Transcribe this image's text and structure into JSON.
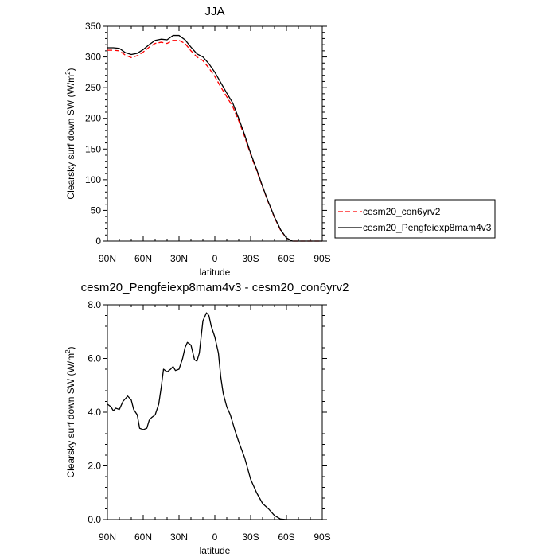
{
  "chart_data": [
    {
      "type": "line",
      "title": "JJA",
      "xlabel": "latitude",
      "ylabel": "Clearsky surf down SW (W/m",
      "ylabel_sup": "2",
      "ylabel_tail": ")",
      "xlim": [
        90,
        -90
      ],
      "ylim": [
        0,
        350
      ],
      "xticks": [
        90,
        60,
        30,
        0,
        -30,
        -60,
        -90
      ],
      "xtick_labels": [
        "90N",
        "60N",
        "30N",
        "0",
        "30S",
        "60S",
        "90S"
      ],
      "yticks": [
        0,
        50,
        100,
        150,
        200,
        250,
        300,
        350
      ],
      "ytick_labels": [
        "0",
        "50",
        "100",
        "150",
        "200",
        "250",
        "300",
        "350"
      ],
      "legend_position": "right",
      "series": [
        {
          "name": "cesm20_con6yrv2",
          "color": "#ff0000",
          "dash": "dashed",
          "x": [
            90,
            85,
            80,
            75,
            70,
            65,
            60,
            55,
            50,
            45,
            40,
            35,
            30,
            25,
            20,
            15,
            10,
            5,
            0,
            -5,
            -10,
            -15,
            -20,
            -25,
            -30,
            -35,
            -40,
            -45,
            -50,
            -55,
            -60,
            -65,
            -70,
            -75,
            -80,
            -85,
            -90
          ],
          "y": [
            311,
            311,
            310,
            303,
            299,
            302,
            308,
            316,
            322,
            324,
            322,
            327,
            327,
            322,
            310,
            300,
            294,
            282,
            268,
            251,
            235,
            219,
            196,
            170,
            141,
            115,
            88,
            62,
            38,
            18,
            5,
            0,
            0,
            0,
            0,
            0,
            0
          ]
        },
        {
          "name": "cesm20_Pengfeiexp8mam4v3",
          "color": "#000000",
          "dash": "solid",
          "x": [
            90,
            85,
            80,
            75,
            70,
            65,
            60,
            55,
            50,
            45,
            40,
            35,
            30,
            25,
            20,
            15,
            10,
            5,
            0,
            -5,
            -10,
            -15,
            -20,
            -25,
            -30,
            -35,
            -40,
            -45,
            -50,
            -55,
            -60,
            -65,
            -70,
            -75,
            -80,
            -85,
            -90
          ],
          "y": [
            315,
            315,
            314,
            307,
            304,
            306,
            312,
            320,
            327,
            329,
            328,
            335,
            335,
            328,
            316,
            305,
            300,
            289,
            275,
            258,
            241,
            225,
            200,
            173,
            143,
            117,
            89,
            63,
            39,
            19,
            5,
            0,
            0,
            0,
            0,
            0,
            0
          ]
        }
      ]
    },
    {
      "type": "line",
      "title": "cesm20_Pengfeiexp8mam4v3 - cesm20_con6yrv2",
      "xlabel": "latitude",
      "ylabel": "Clearsky surf down SW (W/m",
      "ylabel_sup": "2",
      "ylabel_tail": ")",
      "xlim": [
        90,
        -90
      ],
      "ylim": [
        0,
        8
      ],
      "xticks": [
        90,
        60,
        30,
        0,
        -30,
        -60,
        -90
      ],
      "xtick_labels": [
        "90N",
        "60N",
        "30N",
        "0",
        "30S",
        "60S",
        "90S"
      ],
      "yticks": [
        0,
        2,
        4,
        6,
        8
      ],
      "ytick_labels": [
        "0.0",
        "2.0",
        "4.0",
        "6.0",
        "8.0"
      ],
      "series": [
        {
          "color": "#000000",
          "dash": "solid",
          "x": [
            90,
            87,
            85,
            83,
            80,
            77,
            75,
            73,
            70,
            68,
            65,
            63,
            60,
            57,
            55,
            53,
            50,
            47,
            45,
            43,
            40,
            37,
            35,
            33,
            30,
            27,
            25,
            23,
            20,
            17,
            15,
            13,
            10,
            7,
            5,
            3,
            0,
            -3,
            -5,
            -7,
            -10,
            -13,
            -15,
            -17,
            -20,
            -25,
            -30,
            -35,
            -40,
            -45,
            -50,
            -55,
            -60,
            -65,
            -70,
            -75,
            -80,
            -85,
            -90
          ],
          "y": [
            4.3,
            4.2,
            4.05,
            4.15,
            4.1,
            4.4,
            4.5,
            4.6,
            4.45,
            4.1,
            3.9,
            3.4,
            3.35,
            3.4,
            3.7,
            3.8,
            3.9,
            4.3,
            4.9,
            5.6,
            5.5,
            5.6,
            5.7,
            5.55,
            5.6,
            6.0,
            6.4,
            6.6,
            6.5,
            5.95,
            5.9,
            6.2,
            7.4,
            7.7,
            7.6,
            7.2,
            6.8,
            6.2,
            5.3,
            4.7,
            4.2,
            3.9,
            3.6,
            3.3,
            2.9,
            2.3,
            1.5,
            1.0,
            0.6,
            0.4,
            0.15,
            0.02,
            0,
            0,
            0,
            0,
            0,
            0,
            0
          ]
        }
      ]
    }
  ]
}
